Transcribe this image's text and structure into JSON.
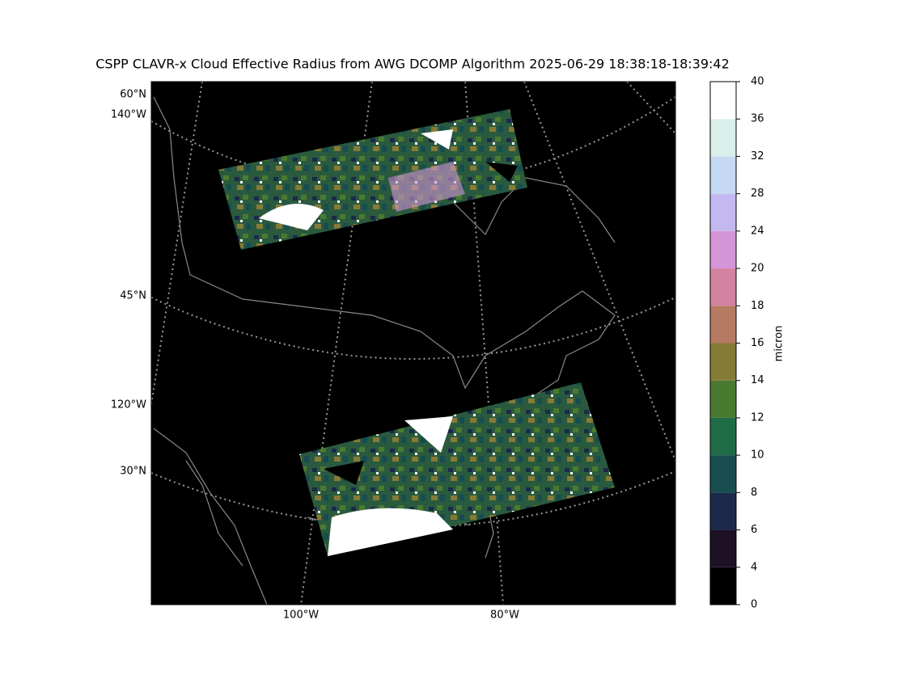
{
  "title": "CSPP CLAVR-x Cloud Effective Radius from AWG DCOMP Algorithm 2025-06-29 18:38:18-18:39:42",
  "map": {
    "left_labels": [
      "60°N",
      "140°W",
      "45°N",
      "120°W",
      "30°N"
    ],
    "bottom_labels": [
      "100°W",
      "80°W"
    ]
  },
  "colorbar": {
    "label": "micron",
    "spacing": "uniform",
    "ticks": [
      0,
      4,
      6,
      8,
      10,
      12,
      14,
      16,
      18,
      20,
      24,
      28,
      32,
      36,
      40
    ],
    "colors": [
      "#000000",
      "#1e1126",
      "#1b2a4a",
      "#174d50",
      "#1e6b45",
      "#4a7a30",
      "#857a36",
      "#b57a62",
      "#d382a0",
      "#d496d6",
      "#c4b8f0",
      "#c5d9f2",
      "#d9f0ea",
      "#ffffff"
    ]
  }
}
